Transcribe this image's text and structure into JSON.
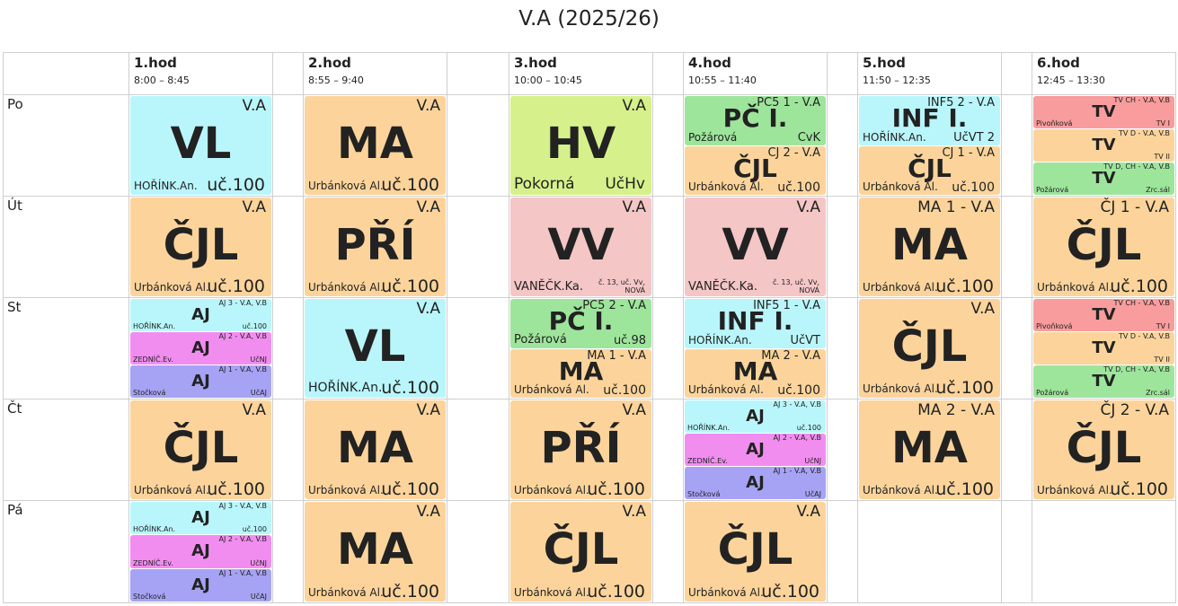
{
  "title": "V.A (2025/26)",
  "hours": [
    {
      "label": "1.hod",
      "time": "8:00 – 8:45"
    },
    {
      "label": "2.hod",
      "time": "8:55 – 9:40"
    },
    {
      "label": "3.hod",
      "time": "10:00 – 10:45"
    },
    {
      "label": "4.hod",
      "time": "10:55 – 11:40"
    },
    {
      "label": "5.hod",
      "time": "11:50 – 12:35"
    },
    {
      "label": "6.hod",
      "time": "12:45 – 13:30"
    }
  ],
  "days": [
    "Po",
    "Út",
    "St",
    "Čt",
    "Pá"
  ],
  "colors": {
    "cyan": "#b9f6fb",
    "orange": "#fcd49b",
    "green": "#9ee59c",
    "lime": "#d6f18b",
    "pink": "#f4c6c6",
    "magenta": "#f28df0",
    "blue": "#a6a3f4",
    "red": "#f89c9d"
  },
  "lessons": {
    "po": {
      "h1": {
        "subject": "VL",
        "group": "V.A",
        "teacher": "HOŘÍNK.An.",
        "room": "uč.100"
      },
      "h2": {
        "subject": "MA",
        "group": "V.A",
        "teacher": "Urbánková Al.",
        "room": "uč.100"
      },
      "h3": {
        "subject": "HV",
        "group": "V.A",
        "teacher": "Pokorná",
        "room": "UčHv"
      },
      "h4a": {
        "subject": "PČ I.",
        "group": "PČ5 1 - V.A",
        "teacher": "Požárová",
        "room": "CvK"
      },
      "h4b": {
        "subject": "ČJL",
        "group": "ČJ 2 - V.A",
        "teacher": "Urbánková Al.",
        "room": "uč.100"
      },
      "h5a": {
        "subject": "INF I.",
        "group": "INF5 2 - V.A",
        "teacher": "HOŘÍNK.An.",
        "room": "UčVT 2"
      },
      "h5b": {
        "subject": "ČJL",
        "group": "ČJ 1 - V.A",
        "teacher": "Urbánková Al.",
        "room": "uč.100"
      },
      "h6a": {
        "subject": "TV",
        "group": "TV CH - V.A, V.B",
        "teacher": "Pivoňková",
        "room": "TV I"
      },
      "h6b": {
        "subject": "TV",
        "group": "TV D - V.A, V.B",
        "teacher": "",
        "room": "TV II"
      },
      "h6c": {
        "subject": "TV",
        "group": "TV D, CH - V.A, V.B",
        "teacher": "Požárová",
        "room": "Zrc.sál"
      }
    },
    "ut": {
      "h1": {
        "subject": "ČJL",
        "group": "V.A",
        "teacher": "Urbánková Al.",
        "room": "uč.100"
      },
      "h2": {
        "subject": "PŘÍ",
        "group": "V.A",
        "teacher": "Urbánková Al.",
        "room": "uč.100"
      },
      "h3": {
        "subject": "VV",
        "group": "V.A",
        "teacher": "VANĚČK.Ka.",
        "room": "č. 13, uč. Vv, NOVÁ"
      },
      "h4": {
        "subject": "VV",
        "group": "V.A",
        "teacher": "VANĚČK.Ka.",
        "room": "č. 13, uč. Vv, NOVÁ"
      },
      "h5": {
        "subject": "MA",
        "group": "MA 1 - V.A",
        "teacher": "Urbánková Al.",
        "room": "uč.100"
      },
      "h6": {
        "subject": "ČJL",
        "group": "ČJ 1 - V.A",
        "teacher": "Urbánková Al.",
        "room": "uč.100"
      }
    },
    "st": {
      "h1a": {
        "subject": "AJ",
        "group": "AJ 3 - V.A, V.B",
        "teacher": "HOŘÍNK.An.",
        "room": "uč.100"
      },
      "h1b": {
        "subject": "AJ",
        "group": "AJ 2 - V.A, V.B",
        "teacher": "ZEDNÍČ.Ev.",
        "room": "UčNJ"
      },
      "h1c": {
        "subject": "AJ",
        "group": "AJ 1 - V.A, V.B",
        "teacher": "Stočková",
        "room": "UčAJ"
      },
      "h2": {
        "subject": "VL",
        "group": "V.A",
        "teacher": "HOŘÍNK.An.",
        "room": "uč.100"
      },
      "h3a": {
        "subject": "PČ I.",
        "group": "PČ5 2 - V.A",
        "teacher": "Požárová",
        "room": "uč.98"
      },
      "h3b": {
        "subject": "MA",
        "group": "MA 1 - V.A",
        "teacher": "Urbánková Al.",
        "room": "uč.100"
      },
      "h4a": {
        "subject": "INF I.",
        "group": "INF5 1 - V.A",
        "teacher": "HOŘÍNK.An.",
        "room": "UčVT"
      },
      "h4b": {
        "subject": "MA",
        "group": "MA 2 - V.A",
        "teacher": "Urbánková Al.",
        "room": "uč.100"
      },
      "h5": {
        "subject": "ČJL",
        "group": "V.A",
        "teacher": "Urbánková Al.",
        "room": "uč.100"
      },
      "h6a": {
        "subject": "TV",
        "group": "TV CH - V.A, V.B",
        "teacher": "Pivoňková",
        "room": "TV I"
      },
      "h6b": {
        "subject": "TV",
        "group": "TV D - V.A, V.B",
        "teacher": "",
        "room": "TV II"
      },
      "h6c": {
        "subject": "TV",
        "group": "TV D, CH - V.A, V.B",
        "teacher": "Požárová",
        "room": "Zrc.sál"
      }
    },
    "ct": {
      "h1": {
        "subject": "ČJL",
        "group": "V.A",
        "teacher": "Urbánková Al.",
        "room": "uč.100"
      },
      "h2": {
        "subject": "MA",
        "group": "V.A",
        "teacher": "Urbánková Al.",
        "room": "uč.100"
      },
      "h3": {
        "subject": "PŘÍ",
        "group": "V.A",
        "teacher": "Urbánková Al.",
        "room": "uč.100"
      },
      "h4a": {
        "subject": "AJ",
        "group": "AJ 3 - V.A, V.B",
        "teacher": "HOŘÍNK.An.",
        "room": "uč.100"
      },
      "h4b": {
        "subject": "AJ",
        "group": "AJ 2 - V.A, V.B",
        "teacher": "ZEDNÍČ.Ev.",
        "room": "UčNJ"
      },
      "h4c": {
        "subject": "AJ",
        "group": "AJ 1 - V.A, V.B",
        "teacher": "Stočková",
        "room": "UčAJ"
      },
      "h5": {
        "subject": "MA",
        "group": "MA 2 - V.A",
        "teacher": "Urbánková Al.",
        "room": "uč.100"
      },
      "h6": {
        "subject": "ČJL",
        "group": "ČJ 2 - V.A",
        "teacher": "Urbánková Al.",
        "room": "uč.100"
      }
    },
    "pa": {
      "h1a": {
        "subject": "AJ",
        "group": "AJ 3 - V.A, V.B",
        "teacher": "HOŘÍNK.An.",
        "room": "uč.100"
      },
      "h1b": {
        "subject": "AJ",
        "group": "AJ 2 - V.A, V.B",
        "teacher": "ZEDNÍČ.Ev.",
        "room": "UčNJ"
      },
      "h1c": {
        "subject": "AJ",
        "group": "AJ 1 - V.A, V.B",
        "teacher": "Stočková",
        "room": "UčAJ"
      },
      "h2": {
        "subject": "MA",
        "group": "V.A",
        "teacher": "Urbánková Al.",
        "room": "uč.100"
      },
      "h3": {
        "subject": "ČJL",
        "group": "V.A",
        "teacher": "Urbánková Al.",
        "room": "uč.100"
      },
      "h4": {
        "subject": "ČJL",
        "group": "V.A",
        "teacher": "Urbánková Al.",
        "room": "uč.100"
      }
    }
  }
}
